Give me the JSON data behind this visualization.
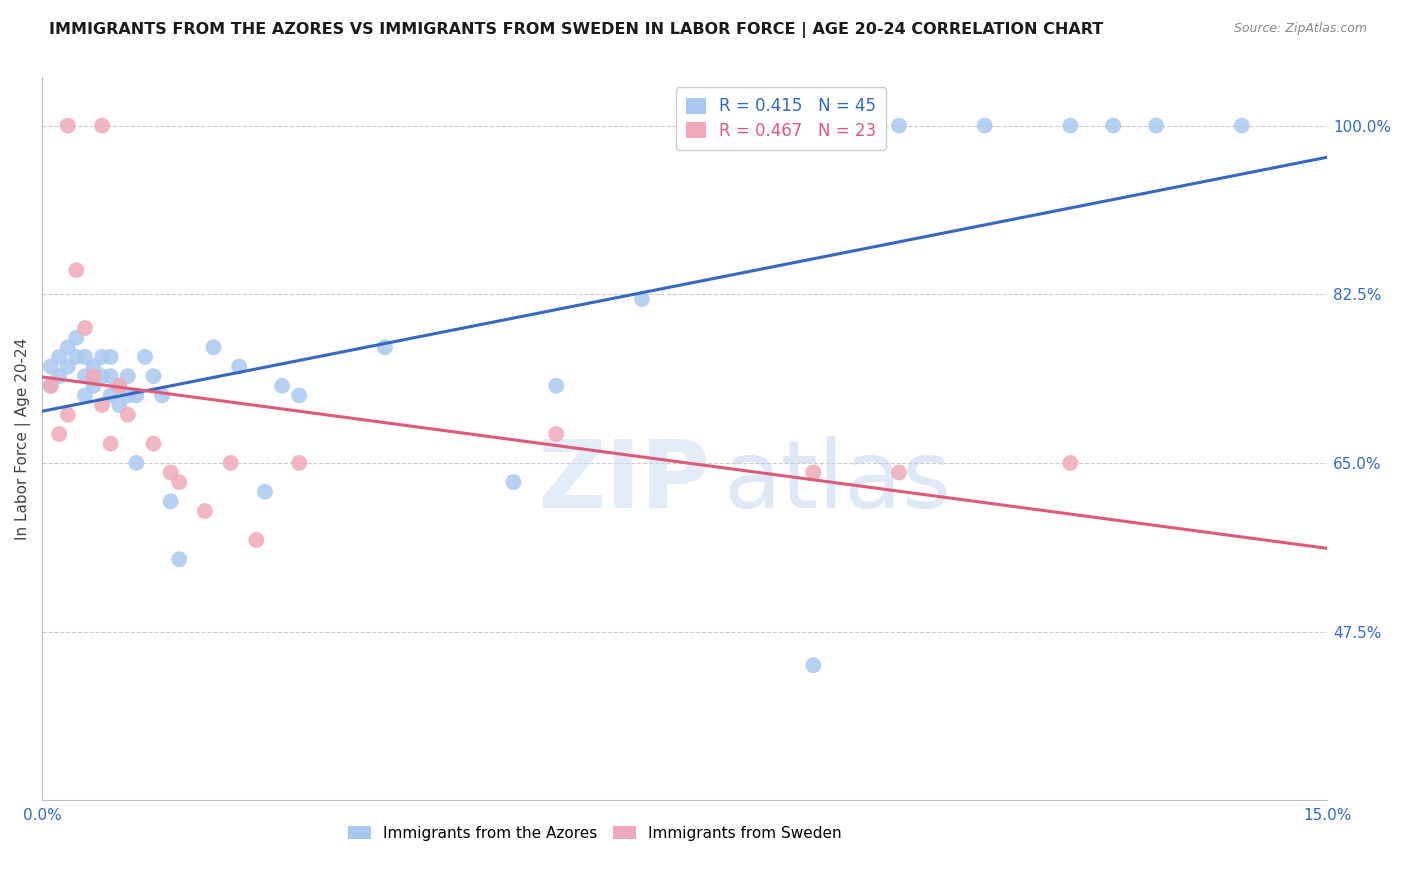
{
  "title": "IMMIGRANTS FROM THE AZORES VS IMMIGRANTS FROM SWEDEN IN LABOR FORCE | AGE 20-24 CORRELATION CHART",
  "source": "Source: ZipAtlas.com",
  "ylabel": "In Labor Force | Age 20-24",
  "xlim": [
    0.0,
    0.15
  ],
  "ylim": [
    0.3,
    1.05
  ],
  "xticks": [
    0.0,
    0.03,
    0.06,
    0.09,
    0.12,
    0.15
  ],
  "xticklabels": [
    "0.0%",
    "",
    "",
    "",
    "",
    "15.0%"
  ],
  "yticks": [
    0.475,
    0.65,
    0.825,
    1.0
  ],
  "yticklabels": [
    "47.5%",
    "65.0%",
    "82.5%",
    "100.0%"
  ],
  "azores_R": 0.415,
  "azores_N": 45,
  "sweden_R": 0.467,
  "sweden_N": 23,
  "azores_color": "#a8c8f0",
  "sweden_color": "#f0a8b8",
  "azores_line_color": "#3468c0",
  "sweden_line_color": "#e05878",
  "legend_azores_label": "Immigrants from the Azores",
  "legend_sweden_label": "Immigrants from Sweden",
  "watermark_zip": "ZIP",
  "watermark_atlas": "atlas",
  "background_color": "#ffffff",
  "grid_color": "#cccccc",
  "azores_x": [
    0.001,
    0.001,
    0.002,
    0.002,
    0.003,
    0.003,
    0.004,
    0.004,
    0.005,
    0.005,
    0.005,
    0.006,
    0.006,
    0.007,
    0.007,
    0.008,
    0.008,
    0.008,
    0.009,
    0.009,
    0.01,
    0.01,
    0.011,
    0.011,
    0.012,
    0.013,
    0.014,
    0.015,
    0.016,
    0.02,
    0.023,
    0.026,
    0.028,
    0.03,
    0.04,
    0.055,
    0.06,
    0.07,
    0.09,
    0.1,
    0.11,
    0.12,
    0.125,
    0.13,
    0.14
  ],
  "azores_y": [
    0.73,
    0.75,
    0.76,
    0.74,
    0.77,
    0.75,
    0.78,
    0.76,
    0.74,
    0.76,
    0.72,
    0.75,
    0.73,
    0.76,
    0.74,
    0.72,
    0.74,
    0.76,
    0.73,
    0.71,
    0.72,
    0.74,
    0.72,
    0.65,
    0.76,
    0.74,
    0.72,
    0.61,
    0.55,
    0.77,
    0.75,
    0.62,
    0.73,
    0.72,
    0.77,
    0.63,
    0.73,
    0.82,
    0.44,
    1.0,
    1.0,
    1.0,
    1.0,
    1.0,
    1.0
  ],
  "sweden_x": [
    0.001,
    0.002,
    0.003,
    0.003,
    0.004,
    0.005,
    0.006,
    0.007,
    0.007,
    0.008,
    0.009,
    0.01,
    0.013,
    0.015,
    0.016,
    0.019,
    0.022,
    0.025,
    0.03,
    0.06,
    0.09,
    0.1,
    0.12
  ],
  "sweden_y": [
    0.73,
    0.68,
    0.7,
    1.0,
    0.85,
    0.79,
    0.74,
    0.71,
    1.0,
    0.67,
    0.73,
    0.7,
    0.67,
    0.64,
    0.63,
    0.6,
    0.65,
    0.57,
    0.65,
    0.68,
    0.64,
    0.64,
    0.65
  ]
}
